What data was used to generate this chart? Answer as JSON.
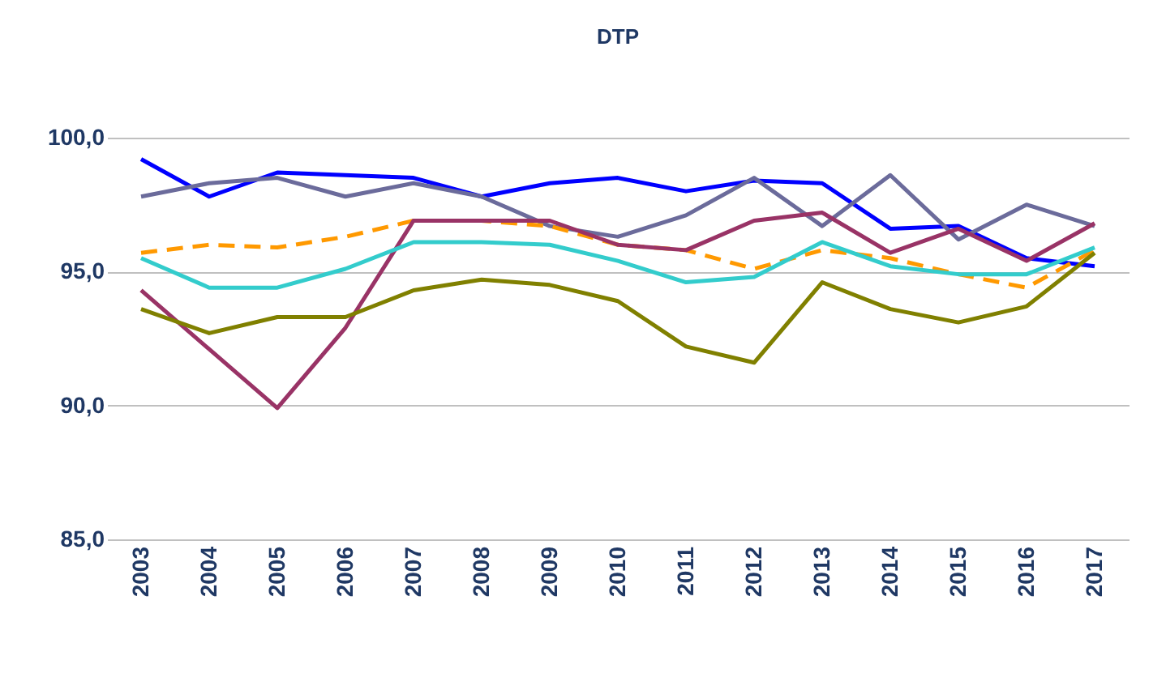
{
  "chart_data": {
    "type": "line",
    "title": "DTP",
    "categories": [
      "2003",
      "2004",
      "2005",
      "2006",
      "2007",
      "2008",
      "2009",
      "2010",
      "2011",
      "2012",
      "2013",
      "2014",
      "2015",
      "2016",
      "2017"
    ],
    "series": [
      {
        "color": "#0000ff",
        "line_style": "solid",
        "values": [
          99.2,
          97.8,
          98.7,
          98.6,
          98.5,
          97.8,
          98.3,
          98.5,
          98.0,
          98.4,
          98.3,
          96.6,
          96.7,
          95.5,
          95.2
        ]
      },
      {
        "color": "#6b6b9b",
        "line_style": "solid",
        "values": [
          97.8,
          98.3,
          98.5,
          97.8,
          98.3,
          97.8,
          96.7,
          96.3,
          97.1,
          98.5,
          96.7,
          98.6,
          96.2,
          97.5,
          96.7
        ]
      },
      {
        "color": "#ff9900",
        "line_style": "dashed",
        "values": [
          95.7,
          96.0,
          95.9,
          96.3,
          96.9,
          96.9,
          96.7,
          96.0,
          95.8,
          95.1,
          95.8,
          95.5,
          94.9,
          94.4,
          95.8
        ]
      },
      {
        "color": "#993366",
        "line_style": "solid",
        "values": [
          94.3,
          92.1,
          89.9,
          92.9,
          96.9,
          96.9,
          96.9,
          96.0,
          95.8,
          96.9,
          97.2,
          95.7,
          96.6,
          95.4,
          96.8
        ]
      },
      {
        "color": "#33cccc",
        "line_style": "solid",
        "values": [
          95.5,
          94.4,
          94.4,
          95.1,
          96.1,
          96.1,
          96.0,
          95.4,
          94.6,
          94.8,
          96.1,
          95.2,
          94.9,
          94.9,
          95.9
        ]
      },
      {
        "color": "#808000",
        "line_style": "solid",
        "values": [
          93.6,
          92.7,
          93.3,
          93.3,
          94.3,
          94.7,
          94.5,
          93.9,
          92.2,
          91.6,
          94.6,
          93.6,
          93.1,
          93.7,
          95.7
        ]
      }
    ],
    "ylim": [
      85,
      100
    ],
    "yticks": [
      {
        "value": 85,
        "label": "85,0"
      },
      {
        "value": 90,
        "label": "90,0"
      },
      {
        "value": 95,
        "label": "95,0"
      },
      {
        "value": 100,
        "label": "100,0"
      }
    ],
    "grid": "y",
    "marker": "none"
  }
}
